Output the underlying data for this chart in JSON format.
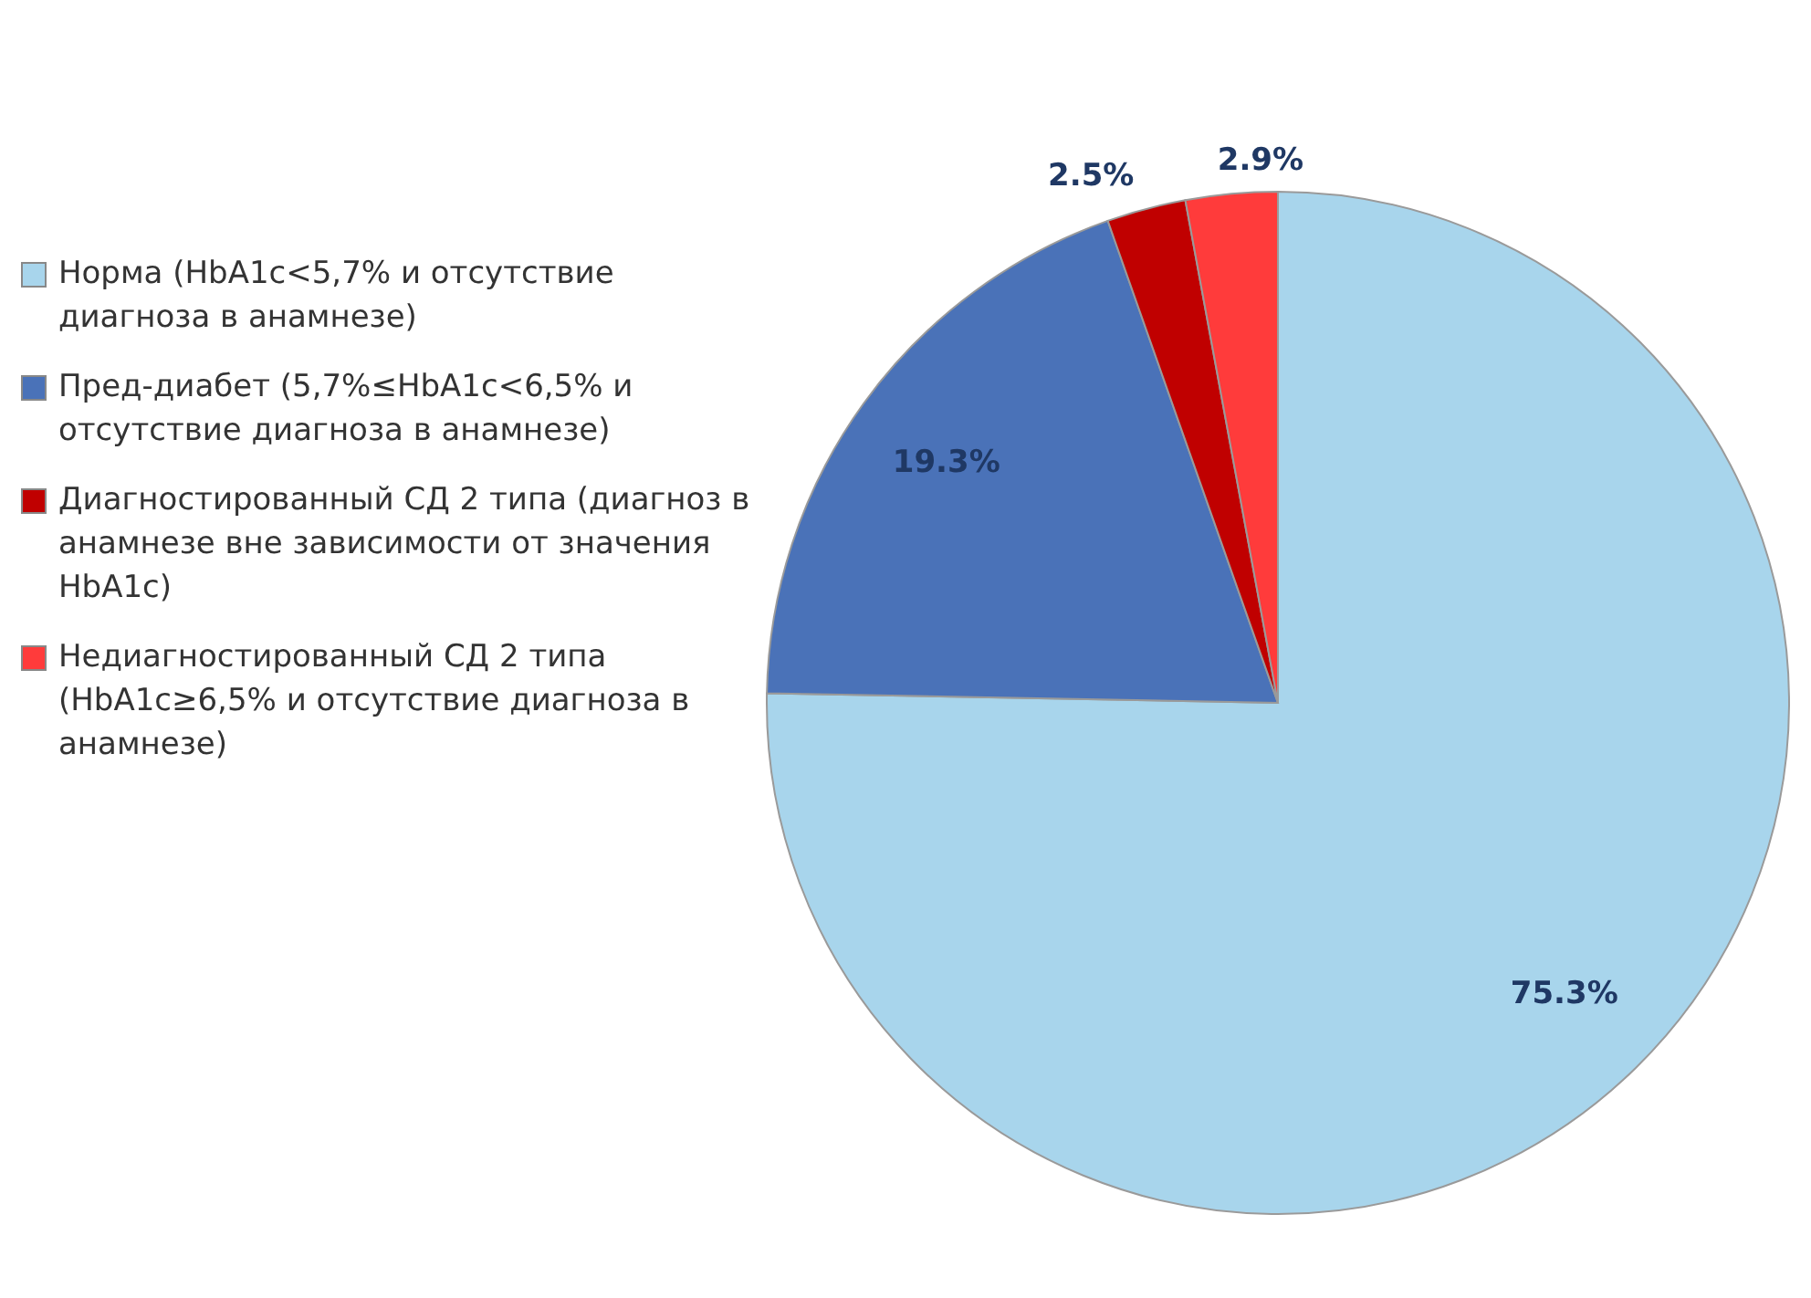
{
  "chart_data": {
    "type": "pie",
    "categories": [
      "Норма (HbA1c<5,7% и отсутствие диагноза в анамнезе)",
      "Пред-диабет (5,7%≤HbA1c<6,5% и отсутствие диагноза в анамнезе)",
      "Диагностированный СД 2 типа (диагноз в анамнезе вне зависимости от значения HbA1c)",
      "Недиагностированный СД 2 типа (HbA1c≥6,5% и отсутствие диагноза в анамнезе)"
    ],
    "values": [
      75.3,
      19.3,
      2.5,
      2.9
    ],
    "colors": [
      "#a8d5ec",
      "#4a72b8",
      "#c00000",
      "#ff3b3b"
    ],
    "value_labels": [
      "75.3%",
      "19.3%",
      "2.5%",
      "2.9%"
    ],
    "legend": "left"
  }
}
